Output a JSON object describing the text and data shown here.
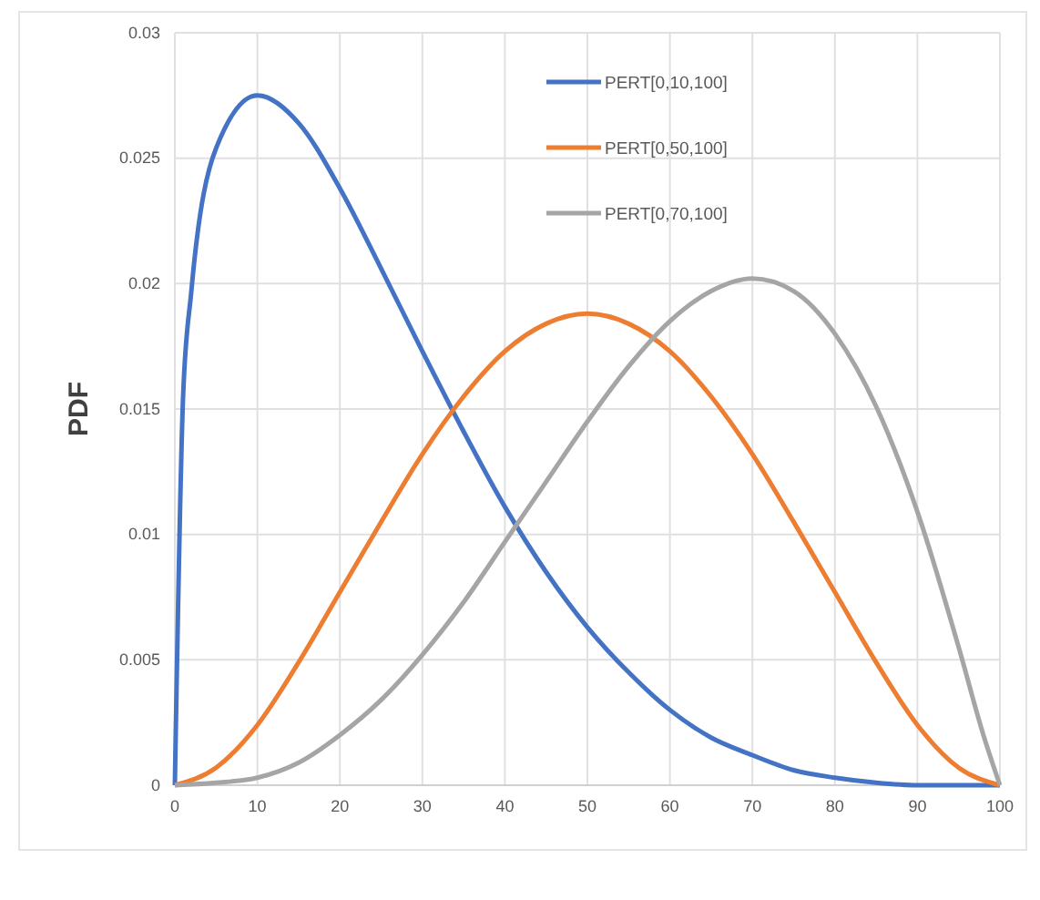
{
  "chart_data": {
    "type": "line",
    "ylabel": "PDF",
    "xlim": [
      0,
      100
    ],
    "ylim": [
      0,
      0.03
    ],
    "xticks": [
      0,
      10,
      20,
      30,
      40,
      50,
      60,
      70,
      80,
      90,
      100
    ],
    "yticks": [
      0,
      0.005,
      0.01,
      0.015,
      0.02,
      0.025,
      0.03
    ],
    "grid": true,
    "legend": "top right",
    "marker": "none",
    "line_style": "solid",
    "series": [
      {
        "name": "PERT[0,10,100]",
        "color": "#4472c4",
        "x": [
          0,
          1,
          2,
          5,
          10,
          15,
          20,
          25,
          30,
          35,
          40,
          45,
          50,
          55,
          60,
          65,
          70,
          75,
          80,
          85,
          90,
          95,
          100
        ],
        "values": [
          0,
          0.0155,
          0.0197,
          0.0254,
          0.0275,
          0.0264,
          0.0238,
          0.0206,
          0.0173,
          0.0141,
          0.0111,
          0.0085,
          0.0063,
          0.0045,
          0.003,
          0.0019,
          0.0012,
          0.0006,
          0.0003,
          0.0001,
          0,
          0,
          0
        ]
      },
      {
        "name": "PERT[0,50,100]",
        "color": "#ed7d31",
        "x": [
          0,
          5,
          10,
          15,
          20,
          25,
          30,
          35,
          40,
          45,
          50,
          55,
          60,
          65,
          70,
          75,
          80,
          85,
          90,
          95,
          100
        ],
        "values": [
          0,
          0.0007,
          0.0024,
          0.0049,
          0.0077,
          0.0105,
          0.0132,
          0.0155,
          0.0173,
          0.0184,
          0.0188,
          0.0184,
          0.0173,
          0.0155,
          0.0132,
          0.0105,
          0.0077,
          0.0049,
          0.0024,
          0.0007,
          0
        ]
      },
      {
        "name": "PERT[0,70,100]",
        "color": "#a5a5a5",
        "x": [
          0,
          5,
          10,
          15,
          20,
          25,
          30,
          35,
          40,
          45,
          50,
          55,
          60,
          65,
          70,
          75,
          80,
          85,
          90,
          95,
          98,
          100
        ],
        "values": [
          0,
          0.0001,
          0.0003,
          0.0009,
          0.002,
          0.0034,
          0.0052,
          0.0073,
          0.0097,
          0.0121,
          0.0145,
          0.0167,
          0.0185,
          0.0197,
          0.0202,
          0.0197,
          0.018,
          0.0151,
          0.0109,
          0.0055,
          0.002,
          0
        ]
      }
    ]
  }
}
